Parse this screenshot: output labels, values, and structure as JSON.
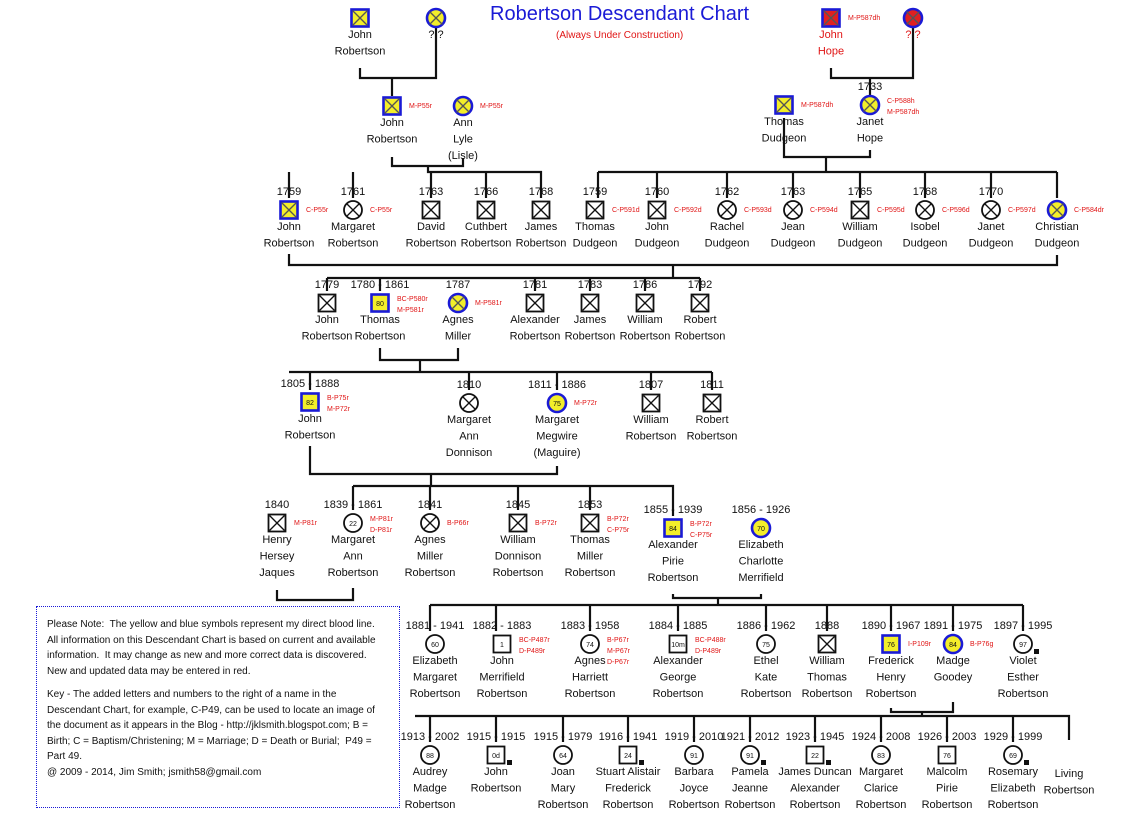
{
  "title": "Robertson Descendant Chart",
  "subtitle": "(Always Under Construction)",
  "colors": {
    "accent": "#1a1ad6",
    "ref": "#e01515",
    "direct_fill": "#f3ee2a",
    "direct_border": "#1a1ad6",
    "hope_fill": "#e02020"
  },
  "people": [
    {
      "id": "g0a",
      "years": "",
      "lines": [
        "John",
        "Robertson"
      ],
      "sym": "square-x",
      "direct": true,
      "refs": []
    },
    {
      "id": "g0b",
      "years": "",
      "lines": [
        "? ?"
      ],
      "sym": "circle-x",
      "direct": true,
      "refs": []
    },
    {
      "id": "h0a",
      "years": "",
      "lines": [
        "John",
        "Hope"
      ],
      "sym": "square-x",
      "direct": true,
      "hope": true,
      "refs": [
        "M-P587dh"
      ],
      "red": true
    },
    {
      "id": "h0b",
      "years": "",
      "lines": [
        "? ?"
      ],
      "sym": "circle-x",
      "direct": true,
      "hope": true,
      "refs": [],
      "red": true
    },
    {
      "id": "g1a",
      "years": "",
      "lines": [
        "John",
        "Robertson"
      ],
      "sym": "square-x",
      "direct": true,
      "refs": [
        "M-P55r"
      ]
    },
    {
      "id": "g1b",
      "years": "",
      "lines": [
        "Ann",
        "Lyle",
        "(Lisle)"
      ],
      "sym": "circle-x",
      "direct": true,
      "refs": [
        "M-P55r"
      ]
    },
    {
      "id": "g1c",
      "years": "",
      "lines": [
        "Thomas",
        "Dudgeon"
      ],
      "sym": "square-x",
      "direct": true,
      "refs": [
        "M-P587dh"
      ]
    },
    {
      "id": "g1d",
      "years": "1733",
      "lines": [
        "Janet",
        "Hope"
      ],
      "sym": "circle-x",
      "direct": true,
      "refs": [
        "C-P588h",
        "M-P587dh"
      ]
    },
    {
      "id": "g2a",
      "years": "1759",
      "lines": [
        "John",
        "Robertson"
      ],
      "sym": "square-x",
      "direct": true,
      "refs": [
        "C-P55r"
      ]
    },
    {
      "id": "g2b",
      "years": "1761",
      "lines": [
        "Margaret",
        "Robertson"
      ],
      "sym": "circle-x",
      "refs": [
        "C-P55r"
      ]
    },
    {
      "id": "g2c",
      "years": "1763",
      "lines": [
        "David",
        "Robertson"
      ],
      "sym": "square-x",
      "refs": []
    },
    {
      "id": "g2d",
      "years": "1766",
      "lines": [
        "Cuthbert",
        "Robertson"
      ],
      "sym": "square-x",
      "refs": []
    },
    {
      "id": "g2e",
      "years": "1768",
      "lines": [
        "James",
        "Robertson"
      ],
      "sym": "square-x",
      "refs": []
    },
    {
      "id": "g2f",
      "years": "1759",
      "lines": [
        "Thomas",
        "Dudgeon"
      ],
      "sym": "square-x",
      "refs": [
        "C-P591d"
      ]
    },
    {
      "id": "g2g",
      "years": "1760",
      "lines": [
        "John",
        "Dudgeon"
      ],
      "sym": "square-x",
      "refs": [
        "C-P592d"
      ]
    },
    {
      "id": "g2h",
      "years": "1762",
      "lines": [
        "Rachel",
        "Dudgeon"
      ],
      "sym": "circle-x",
      "refs": [
        "C-P593d"
      ]
    },
    {
      "id": "g2i",
      "years": "1763",
      "lines": [
        "Jean",
        "Dudgeon"
      ],
      "sym": "circle-x",
      "refs": [
        "C-P594d"
      ]
    },
    {
      "id": "g2j",
      "years": "1765",
      "lines": [
        "William",
        "Dudgeon"
      ],
      "sym": "square-x",
      "refs": [
        "C-P595d"
      ]
    },
    {
      "id": "g2k",
      "years": "1768",
      "lines": [
        "Isobel",
        "Dudgeon"
      ],
      "sym": "circle-x",
      "refs": [
        "C-P596d"
      ]
    },
    {
      "id": "g2l",
      "years": "1770",
      "lines": [
        "Janet",
        "Dudgeon"
      ],
      "sym": "circle-x",
      "refs": [
        "C-P597d"
      ]
    },
    {
      "id": "g2m",
      "years": "",
      "lines": [
        "Christian",
        "Dudgeon"
      ],
      "sym": "circle-x",
      "direct": true,
      "refs": [
        "C-P584dr"
      ]
    },
    {
      "id": "g3a",
      "years": "1779",
      "lines": [
        "John",
        "Robertson"
      ],
      "sym": "square-x",
      "refs": []
    },
    {
      "id": "g3b",
      "years": "1780 - 1861",
      "lines": [
        "Thomas",
        "Robertson"
      ],
      "sym": "square",
      "age": "80",
      "direct": true,
      "refs": [
        "BC-P580r",
        "M-P581r"
      ]
    },
    {
      "id": "g3c",
      "years": "1787",
      "lines": [
        "Agnes",
        "Miller"
      ],
      "sym": "circle-x",
      "direct": true,
      "refs": [
        "M-P581r"
      ]
    },
    {
      "id": "g3d",
      "years": "1781",
      "lines": [
        "Alexander",
        "Robertson"
      ],
      "sym": "square-x",
      "refs": []
    },
    {
      "id": "g3e",
      "years": "1783",
      "lines": [
        "James",
        "Robertson"
      ],
      "sym": "square-x",
      "refs": []
    },
    {
      "id": "g3f",
      "years": "1786",
      "lines": [
        "William",
        "Robertson"
      ],
      "sym": "square-x",
      "refs": []
    },
    {
      "id": "g3g",
      "years": "1792",
      "lines": [
        "Robert",
        "Robertson"
      ],
      "sym": "square-x",
      "refs": []
    },
    {
      "id": "g4a",
      "years": "1805 - 1888",
      "lines": [
        "John",
        "Robertson"
      ],
      "sym": "square",
      "age": "82",
      "direct": true,
      "refs": [
        "B-P75r",
        "M-P72r"
      ]
    },
    {
      "id": "g4b",
      "years": "1810",
      "lines": [
        "Margaret",
        "Ann",
        "Donnison"
      ],
      "sym": "circle-x",
      "refs": []
    },
    {
      "id": "g4c",
      "years": "1811 - 1886",
      "lines": [
        "Margaret",
        "Megwire",
        "(Maguire)"
      ],
      "sym": "circle",
      "age": "75",
      "direct": true,
      "refs": [
        "M-P72r"
      ]
    },
    {
      "id": "g4d",
      "years": "1807",
      "lines": [
        "William",
        "Robertson"
      ],
      "sym": "square-x",
      "refs": []
    },
    {
      "id": "g4e",
      "years": "1811",
      "lines": [
        "Robert",
        "Robertson"
      ],
      "sym": "square-x",
      "refs": []
    },
    {
      "id": "g5a",
      "years": "1840",
      "lines": [
        "Henry",
        "Hersey",
        "Jaques"
      ],
      "sym": "square-x",
      "refs": [
        "M-P81r"
      ]
    },
    {
      "id": "g5b",
      "years": "1839 - 1861",
      "lines": [
        "Margaret",
        "Ann",
        "Robertson"
      ],
      "sym": "circle",
      "age": "22",
      "refs": [
        "M-P81r",
        "D-P81r"
      ]
    },
    {
      "id": "g5c",
      "years": "1841",
      "lines": [
        "Agnes",
        "Miller",
        "Robertson"
      ],
      "sym": "circle-x",
      "refs": [
        "B-P66r"
      ]
    },
    {
      "id": "g5d",
      "years": "1845",
      "lines": [
        "William",
        "Donnison",
        "Robertson"
      ],
      "sym": "square-x",
      "refs": [
        "B-P72r"
      ]
    },
    {
      "id": "g5e",
      "years": "1853",
      "lines": [
        "Thomas",
        "Miller",
        "Robertson"
      ],
      "sym": "square-x",
      "refs": [
        "B-P72r",
        "C-P75r"
      ]
    },
    {
      "id": "g5f",
      "years": "1855 - 1939",
      "lines": [
        "Alexander",
        "Pirie",
        "Robertson"
      ],
      "sym": "square",
      "age": "84",
      "direct": true,
      "refs": [
        "B-P72r",
        "C-P75r"
      ]
    },
    {
      "id": "g5g",
      "years": "1856 - 1926",
      "lines": [
        "Elizabeth",
        "Charlotte",
        "Merrifield"
      ],
      "sym": "circle",
      "age": "70",
      "direct": true,
      "refs": []
    },
    {
      "id": "g6a",
      "years": "1881 - 1941",
      "lines": [
        "Elizabeth",
        "Margaret",
        "Robertson"
      ],
      "sym": "circle",
      "age": "60",
      "refs": []
    },
    {
      "id": "g6b",
      "years": "1882 - 1883",
      "lines": [
        "John",
        "Merrifield",
        "Robertson"
      ],
      "sym": "square",
      "age": "1",
      "refs": [
        "BC-P487r",
        "D-P489r"
      ]
    },
    {
      "id": "g6c",
      "years": "1883 - 1958",
      "lines": [
        "Agnes",
        "Harriett",
        "Robertson"
      ],
      "sym": "circle",
      "age": "74",
      "refs": [
        "B-P67r",
        "M-P67r",
        "D-P67r"
      ]
    },
    {
      "id": "g6d",
      "years": "1884 - 1885",
      "lines": [
        "Alexander",
        "George",
        "Robertson"
      ],
      "sym": "square",
      "age": "10m",
      "refs": [
        "BC-P488r",
        "D-P489r"
      ]
    },
    {
      "id": "g6e",
      "years": "1886 - 1962",
      "lines": [
        "Ethel",
        "Kate",
        "Robertson"
      ],
      "sym": "circle",
      "age": "75",
      "refs": []
    },
    {
      "id": "g6f",
      "years": "1888",
      "lines": [
        "William",
        "Thomas",
        "Robertson"
      ],
      "sym": "square-x",
      "refs": []
    },
    {
      "id": "g6g",
      "years": "1890 - 1967",
      "lines": [
        "Frederick",
        "Henry",
        "Robertson"
      ],
      "sym": "square",
      "age": "76",
      "direct": true,
      "refs": [
        "I-P109r"
      ]
    },
    {
      "id": "g6h",
      "years": "1891 - 1975",
      "lines": [
        "Madge",
        "Goodey"
      ],
      "sym": "circle",
      "age": "84",
      "direct": true,
      "refs": [
        "B-P76g"
      ]
    },
    {
      "id": "g6i",
      "years": "1897 - 1995",
      "lines": [
        "Violet",
        "Esther",
        "Robertson"
      ],
      "sym": "circle",
      "age": "97",
      "mark": true,
      "refs": []
    },
    {
      "id": "g7a",
      "years": "1913 - 2002",
      "lines": [
        "Audrey",
        "Madge",
        "Robertson"
      ],
      "sym": "circle",
      "age": "88",
      "refs": []
    },
    {
      "id": "g7b",
      "years": "1915 - 1915",
      "lines": [
        "John",
        "Robertson"
      ],
      "sym": "square",
      "age": "0d",
      "mark": true,
      "refs": []
    },
    {
      "id": "g7c",
      "years": "1915 - 1979",
      "lines": [
        "Joan",
        "Mary",
        "Robertson"
      ],
      "sym": "circle",
      "age": "64",
      "refs": []
    },
    {
      "id": "g7d",
      "years": "1916 - 1941",
      "lines": [
        "Stuart Alistair",
        "Frederick",
        "Robertson"
      ],
      "sym": "square",
      "age": "24",
      "mark": true,
      "refs": []
    },
    {
      "id": "g7e",
      "years": "1919 - 2010",
      "lines": [
        "Barbara",
        "Joyce",
        "Robertson"
      ],
      "sym": "circle",
      "age": "91",
      "refs": []
    },
    {
      "id": "g7f",
      "years": "1921 - 2012",
      "lines": [
        "Pamela",
        "Jeanne",
        "Robertson"
      ],
      "sym": "circle",
      "age": "91",
      "mark": true,
      "refs": []
    },
    {
      "id": "g7g",
      "years": "1923 - 1945",
      "lines": [
        "James Duncan",
        "Alexander",
        "Robertson"
      ],
      "sym": "square",
      "age": "22",
      "mark": true,
      "refs": []
    },
    {
      "id": "g7h",
      "years": "1924 - 2008",
      "lines": [
        "Margaret",
        "Clarice",
        "Robertson"
      ],
      "sym": "circle",
      "age": "83",
      "refs": []
    },
    {
      "id": "g7i",
      "years": "1926 - 2003",
      "lines": [
        "Malcolm",
        "Pirie",
        "Robertson"
      ],
      "sym": "square",
      "age": "76",
      "refs": []
    },
    {
      "id": "g7j",
      "years": "1929 - 1999",
      "lines": [
        "Rosemary",
        "Elizabeth",
        "Robertson"
      ],
      "sym": "circle",
      "age": "69",
      "mark": true,
      "refs": []
    },
    {
      "id": "g7k",
      "years": "",
      "lines": [
        "Living",
        "Robertson"
      ],
      "sym": "none",
      "refs": []
    }
  ],
  "note": {
    "p1": "Please Note:  The yellow and blue symbols represent my direct blood line.  All information on this Descendant Chart is based on current and available information.  It may change as new and more correct data is discovered.  New and updated data may be entered in red.",
    "p2": "Key - The added letters and numbers to the right of a name in the Descendant Chart, for example, C-P49, can be used to locate an image of the document as it appears in the Blog - http://jklsmith.blogspot.com; B = Birth; C = Baptism/Christening; M = Marriage; D = Death or Burial;  P49 = Part 49.\n@ 2009 - 2014, Jim Smith; jsmith58@gmail.com"
  }
}
